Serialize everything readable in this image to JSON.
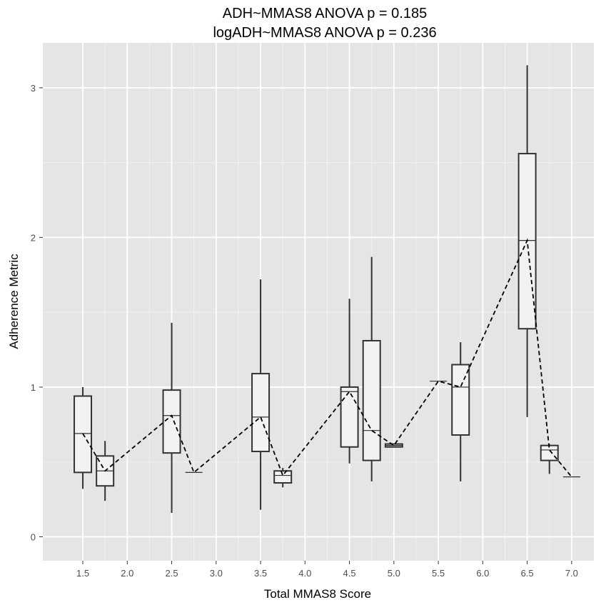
{
  "chart_data": {
    "type": "boxplot",
    "title": "ADH~MMAS8 ANOVA p = 0.185",
    "subtitle": "logADH~MMAS8 ANOVA p = 0.236",
    "xlabel": "Total MMAS8 Score",
    "ylabel": "Adherence Metric",
    "xlim": [
      1.05,
      7.25
    ],
    "ylim": [
      -0.16,
      3.3
    ],
    "x_ticks": [
      "1.5",
      "2.0",
      "2.5",
      "3.0",
      "3.5",
      "4.0",
      "4.5",
      "5.0",
      "5.5",
      "6.0",
      "6.5",
      "7.0"
    ],
    "y_ticks": [
      "0",
      "1",
      "2",
      "3"
    ],
    "x_tick_values": [
      1.5,
      2.0,
      2.5,
      3.0,
      3.5,
      4.0,
      4.5,
      5.0,
      5.5,
      6.0,
      6.5,
      7.0
    ],
    "y_tick_values": [
      0,
      1,
      2,
      3
    ],
    "grid": true,
    "boxes": [
      {
        "x": 1.5,
        "min": 0.32,
        "q1": 0.43,
        "median": 0.69,
        "q3": 0.94,
        "max": 1.0
      },
      {
        "x": 1.75,
        "min": 0.24,
        "q1": 0.34,
        "median": 0.44,
        "q3": 0.54,
        "max": 0.64
      },
      {
        "x": 2.5,
        "min": 0.16,
        "q1": 0.56,
        "median": 0.81,
        "q3": 0.98,
        "max": 1.43
      },
      {
        "x": 2.75,
        "min": 0.43,
        "q1": 0.43,
        "median": 0.43,
        "q3": 0.43,
        "max": 0.43
      },
      {
        "x": 3.5,
        "min": 0.18,
        "q1": 0.57,
        "median": 0.8,
        "q3": 1.09,
        "max": 1.72
      },
      {
        "x": 3.75,
        "min": 0.33,
        "q1": 0.36,
        "median": 0.41,
        "q3": 0.44,
        "max": 0.46
      },
      {
        "x": 4.5,
        "min": 0.49,
        "q1": 0.6,
        "median": 0.97,
        "q3": 1.0,
        "max": 1.59
      },
      {
        "x": 4.75,
        "min": 0.37,
        "q1": 0.51,
        "median": 0.71,
        "q3": 1.31,
        "max": 1.87
      },
      {
        "x": 5.0,
        "min": 0.6,
        "q1": 0.6,
        "median": 0.61,
        "q3": 0.62,
        "max": 0.62
      },
      {
        "x": 5.5,
        "min": 1.04,
        "q1": 1.04,
        "median": 1.04,
        "q3": 1.04,
        "max": 1.04
      },
      {
        "x": 5.75,
        "min": 0.37,
        "q1": 0.68,
        "median": 1.0,
        "q3": 1.15,
        "max": 1.3
      },
      {
        "x": 6.5,
        "min": 0.8,
        "q1": 1.39,
        "median": 1.98,
        "q3": 2.56,
        "max": 3.15
      },
      {
        "x": 6.75,
        "min": 0.42,
        "q1": 0.51,
        "median": 0.58,
        "q3": 0.61,
        "max": 0.62
      },
      {
        "x": 7.0,
        "min": 0.4,
        "q1": 0.4,
        "median": 0.4,
        "q3": 0.4,
        "max": 0.4
      }
    ],
    "median_line": {
      "style": "dashed",
      "color": "#000000"
    },
    "colors": {
      "panel": "#e5e5e5",
      "grid_major": "#ffffff",
      "grid_minor": "#f2f2f2",
      "box_fill": "#f2f2f2",
      "box_stroke": "#333333"
    }
  }
}
